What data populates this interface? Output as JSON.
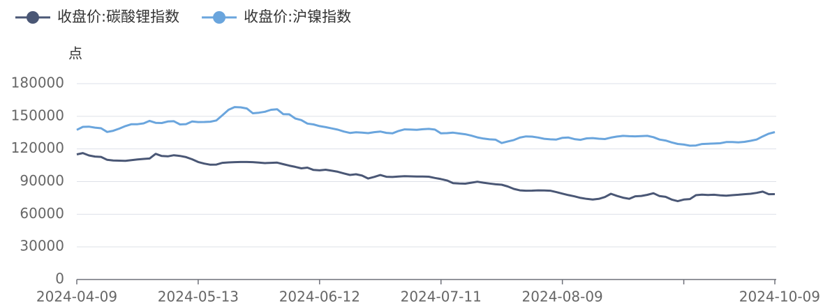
{
  "chart_data": {
    "type": "line",
    "y_unit": "点",
    "categories": [
      "2024-04-09",
      null,
      null,
      null,
      null,
      null,
      null,
      null,
      null,
      null,
      null,
      null,
      null,
      null,
      null,
      null,
      null,
      null,
      null,
      null,
      "2024-05-13",
      null,
      null,
      null,
      null,
      null,
      null,
      null,
      null,
      null,
      null,
      null,
      null,
      null,
      null,
      null,
      null,
      null,
      null,
      null,
      "2024-06-12",
      null,
      null,
      null,
      null,
      null,
      null,
      null,
      null,
      null,
      null,
      null,
      null,
      null,
      null,
      null,
      null,
      null,
      null,
      null,
      "2024-07-11",
      null,
      null,
      null,
      null,
      null,
      null,
      null,
      null,
      null,
      null,
      null,
      null,
      null,
      null,
      null,
      null,
      null,
      null,
      null,
      "2024-08-09",
      null,
      null,
      null,
      null,
      null,
      null,
      null,
      null,
      null,
      null,
      null,
      null,
      null,
      null,
      null,
      null,
      null,
      null,
      null,
      null,
      null,
      null,
      null,
      null,
      null,
      null,
      null,
      null,
      null,
      null,
      null,
      null,
      null,
      null,
      "2024-10-09"
    ],
    "xticks": [
      0,
      20,
      40,
      60,
      80,
      100,
      115
    ],
    "series": [
      {
        "name": "收盘价:碳酸锂指数",
        "color": "#4a5775",
        "values": [
          115000,
          116200,
          114000,
          113000,
          112700,
          110000,
          109400,
          109200,
          109000,
          109700,
          110300,
          110800,
          111200,
          115500,
          113500,
          113200,
          114200,
          113600,
          112500,
          110500,
          108000,
          106500,
          105500,
          105600,
          107200,
          107600,
          107900,
          108000,
          108000,
          107900,
          107500,
          107000,
          107200,
          107400,
          106000,
          104700,
          103500,
          102200,
          102800,
          100700,
          100300,
          100900,
          100000,
          99000,
          97500,
          96100,
          96700,
          95500,
          92800,
          94300,
          96000,
          94400,
          94200,
          94700,
          95000,
          94800,
          94600,
          94600,
          94500,
          93300,
          92300,
          91000,
          88600,
          88200,
          88100,
          89000,
          89900,
          89000,
          88200,
          87500,
          87100,
          85500,
          83300,
          81900,
          81600,
          81700,
          81900,
          81800,
          81600,
          80300,
          78900,
          77600,
          76400,
          75000,
          74100,
          73500,
          74100,
          75800,
          78800,
          76800,
          75200,
          74200,
          76500,
          76800,
          77800,
          79300,
          76700,
          76000,
          73500,
          72000,
          73500,
          73900,
          77500,
          78000,
          77700,
          77900,
          77400,
          77000,
          77500,
          77900,
          78400,
          78800,
          79600,
          80800,
          78400,
          78500
        ]
      },
      {
        "name": "收盘价:沪镍指数",
        "color": "#6aa5dd",
        "values": [
          137500,
          140300,
          140500,
          139600,
          139000,
          135600,
          136700,
          138700,
          141000,
          142700,
          142700,
          143500,
          145800,
          144000,
          143800,
          145200,
          145500,
          142500,
          142800,
          145200,
          144700,
          144800,
          145000,
          146200,
          151000,
          156000,
          158500,
          158200,
          157200,
          152800,
          153300,
          154200,
          156000,
          156500,
          152000,
          151800,
          148000,
          146500,
          143300,
          142500,
          141000,
          140000,
          138900,
          137700,
          136000,
          134700,
          135300,
          135000,
          134500,
          135400,
          136000,
          134800,
          134300,
          136500,
          138000,
          137800,
          137600,
          138100,
          138400,
          137800,
          134300,
          134500,
          135000,
          134200,
          133500,
          132200,
          130600,
          129500,
          128800,
          128500,
          125400,
          126900,
          128200,
          130400,
          131500,
          131300,
          130500,
          129300,
          128800,
          128600,
          130200,
          130500,
          129000,
          128400,
          129700,
          130000,
          129400,
          129100,
          130400,
          131400,
          132000,
          131700,
          131600,
          131800,
          132000,
          130800,
          128600,
          127700,
          126000,
          124600,
          124000,
          123000,
          123200,
          124500,
          124800,
          125000,
          125200,
          126300,
          126300,
          126000,
          126500,
          127500,
          128600,
          131500,
          134000,
          135500
        ]
      }
    ],
    "ylim": [
      0,
      180000
    ],
    "yticks": [
      0,
      30000,
      60000,
      90000,
      120000,
      150000,
      180000
    ],
    "grid": true,
    "legend": "top-left"
  }
}
